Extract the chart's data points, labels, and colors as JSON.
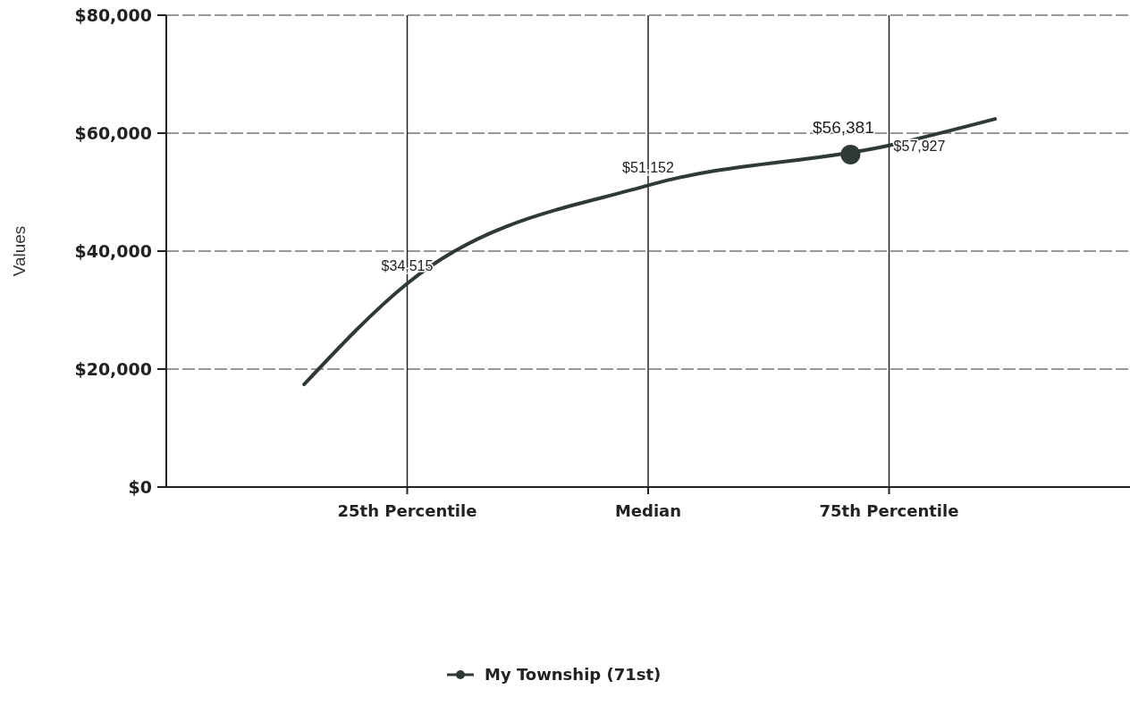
{
  "chart_data": {
    "type": "line",
    "ylabel": "Values",
    "xlim": [
      0,
      100
    ],
    "xticks": [
      {
        "value": 25,
        "label": "25th Percentile"
      },
      {
        "value": 50,
        "label": "Median"
      },
      {
        "value": 75,
        "label": "75th Percentile"
      }
    ],
    "ylim": [
      0,
      80000
    ],
    "yticks": [
      {
        "value": 0,
        "label": "$0"
      },
      {
        "value": 20000,
        "label": "$20,000"
      },
      {
        "value": 40000,
        "label": "$40,000"
      },
      {
        "value": 60000,
        "label": "$60,000"
      },
      {
        "value": 80000,
        "label": "$80,000"
      }
    ],
    "grid": true,
    "legend": "bottom",
    "series": [
      {
        "color": "#2f3a34",
        "marker": "none",
        "x": [
          14.3,
          25,
          50,
          75,
          86
        ],
        "values": [
          17400,
          34515,
          51152,
          57927,
          62400
        ],
        "value_labels": [
          null,
          "$34,515",
          "$51,152",
          "$57,927",
          null
        ]
      },
      {
        "type": "scatter",
        "name": "My Township (71st)",
        "color": "#2f3a34",
        "marker": "circle",
        "x": [
          71
        ],
        "values": [
          56381
        ],
        "value_labels": [
          "$56,381"
        ]
      }
    ]
  }
}
